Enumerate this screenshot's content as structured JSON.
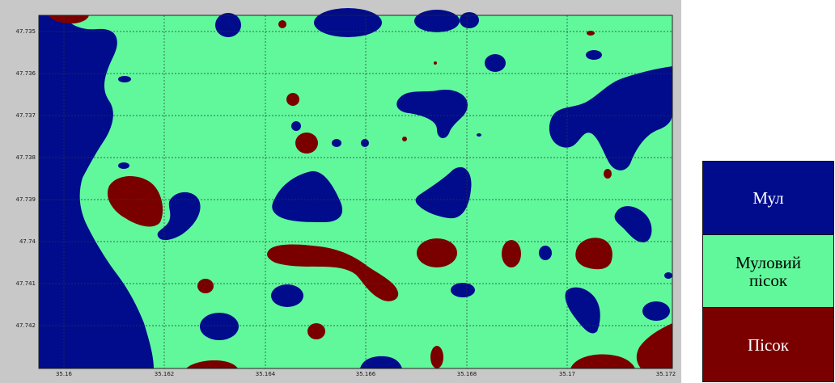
{
  "map": {
    "colors": {
      "background": "#61f89c",
      "mul": "#000c8c",
      "sand": "#7a0000",
      "grid": "#333333",
      "frame": "#c8c8c8"
    },
    "y_ticks": [
      "47.735",
      "47.736",
      "47.737",
      "47.738",
      "47.739",
      "47.74",
      "47.741",
      "47.742"
    ],
    "x_ticks": [
      "35.16",
      "35.162",
      "35.164",
      "35.166",
      "35.168",
      "35.17",
      "35.172"
    ],
    "y_range": [
      47.7346,
      47.7433
    ],
    "x_range": [
      35.1595,
      35.1721
    ]
  },
  "legend": {
    "items": [
      {
        "key": "mul",
        "label": "Мул",
        "color": "#000c8c"
      },
      {
        "key": "mulsand",
        "label": "Муловий\nпісок",
        "color": "#61f89c"
      },
      {
        "key": "sand",
        "label": "Пісок",
        "color": "#7a0000"
      }
    ]
  }
}
